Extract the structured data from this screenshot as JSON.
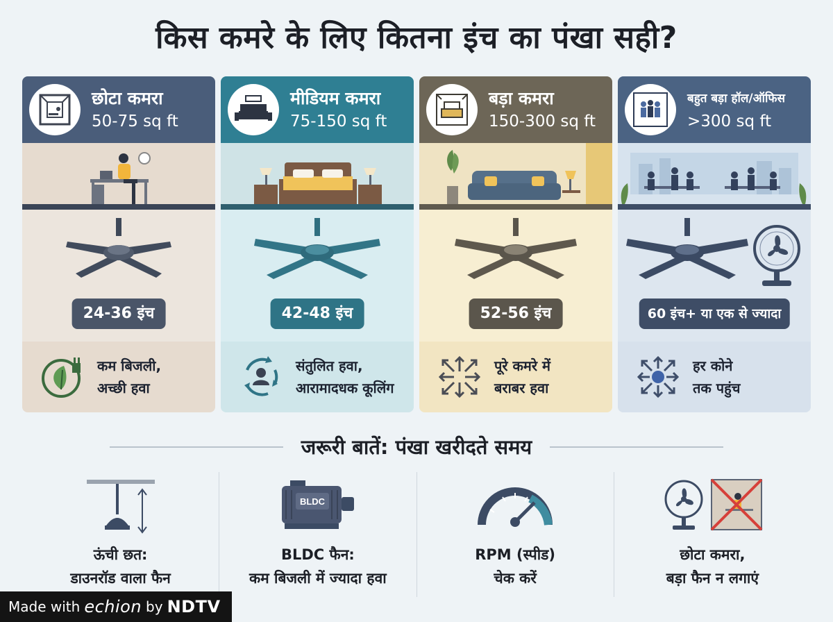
{
  "title": "किस कमरे के लिए कितना इंच का पंखा सही?",
  "cards": [
    {
      "name": "छोटा कमरा",
      "area": "50-75 sq ft",
      "size": "24-36 इंच",
      "benefit_line1": "कम बिजली,",
      "benefit_line2": "अच्छी हवा",
      "icon": "small-room-icon",
      "benefit_icon": "eco-leaf-plug-icon",
      "color": "#4a5d7a"
    },
    {
      "name": "मीडियम कमरा",
      "area": "75-150 sq ft",
      "size": "42-48 इंच",
      "benefit_line1": "संतुलित हवा,",
      "benefit_line2": "आरामादधक कूलिंग",
      "icon": "bed-icon",
      "benefit_icon": "person-cycle-icon",
      "color": "#2f7f93"
    },
    {
      "name": "बड़ा कमरा",
      "area": "150-300 sq ft",
      "size": "52-56 इंच",
      "benefit_line1": "पूरे कमरे में",
      "benefit_line2": "बराबर हवा",
      "icon": "sofa-icon",
      "benefit_icon": "arrows-spread-icon",
      "color": "#6d6657"
    },
    {
      "name": "बहुत बड़ा हॉल/ऑफिस",
      "area": ">300 sq ft",
      "size": "60 इंच+ या एक से ज्यादा",
      "benefit_line1": "हर कोने",
      "benefit_line2": "तक पहुंच",
      "icon": "people-group-icon",
      "benefit_icon": "radial-arrows-icon",
      "color": "#4b6383"
    }
  ],
  "section_title": "जरूरी बातें: पंखा खरीदते समय",
  "tips": [
    {
      "line1": "ऊंची छत:",
      "line2": "डाउनरॉड वाला फैन",
      "icon": "downrod-fan-icon"
    },
    {
      "line1": "BLDC फैन:",
      "line2": "कम बिजली में ज्यादा हवा",
      "icon": "bldc-motor-icon",
      "motor_label": "BLDC"
    },
    {
      "line1": "RPM (स्पीड)",
      "line2": "चेक करें",
      "icon": "speedometer-icon"
    },
    {
      "line1": "छोटा कमरा,",
      "line2": "बड़ा फैन न लगाएं",
      "icon": "no-big-fan-icon"
    }
  ],
  "badge": {
    "made_with": "Made with",
    "brand": "echion",
    "by": "by",
    "publisher": "NDTV"
  }
}
